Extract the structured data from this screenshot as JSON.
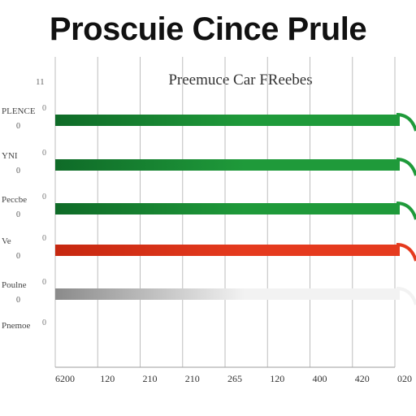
{
  "title": "Proscuie Cince Prule",
  "chart_data": {
    "type": "bar",
    "orientation": "horizontal",
    "title": "Proscuie Cince Prule",
    "subtitle": "Preemuce Car FReebes",
    "categories": [
      "PLENCE",
      "YNI",
      "Peccbe",
      "Ve",
      "Poulne",
      "Pnemoe"
    ],
    "category_sublabels": [
      "0",
      "0",
      "0",
      "0",
      "0",
      ""
    ],
    "row_markers": [
      "0",
      "0",
      "0",
      "0",
      "0",
      "0"
    ],
    "values": [
      100,
      100,
      100,
      100,
      100,
      null
    ],
    "bar_colors": [
      "#1f9a3a",
      "#1f9a3a",
      "#1f9a3a",
      "#e53a1e",
      "#bdbdbd"
    ],
    "x_ticks": [
      "6200",
      "120",
      "210",
      "210",
      "265",
      "120",
      "400",
      "420",
      "020"
    ],
    "top_left_label": "11",
    "grid": true,
    "legend": "none"
  }
}
